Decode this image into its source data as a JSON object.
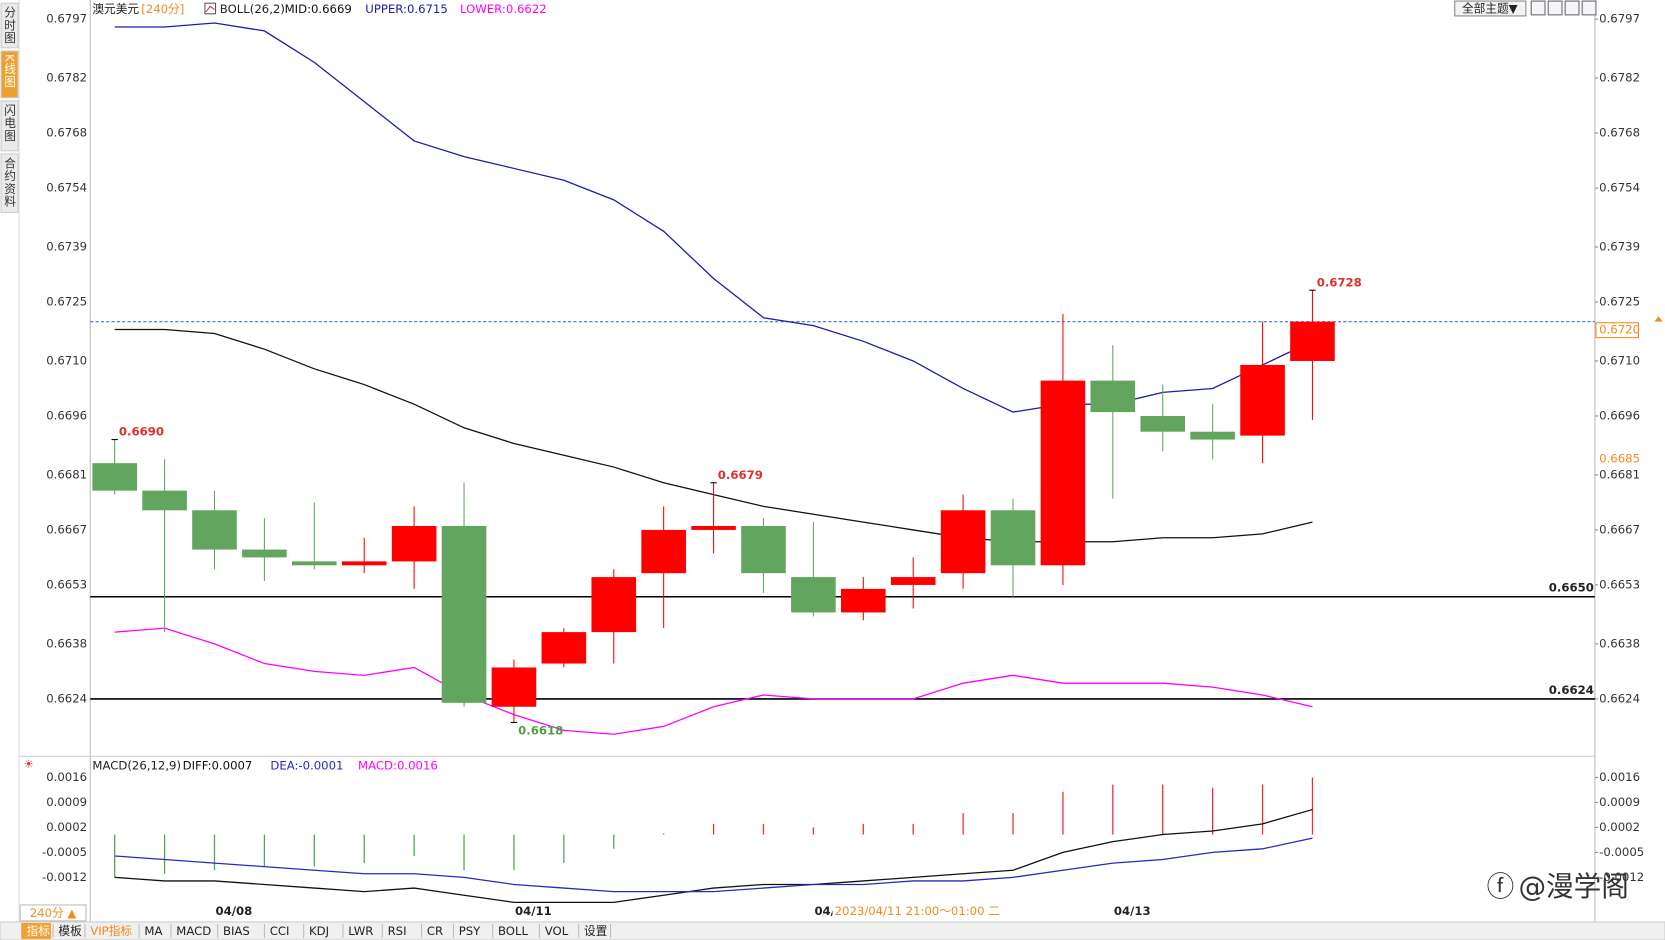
{
  "header": {
    "symbol": "澳元美元",
    "period": "[240分]",
    "theme_button": "全部主题▼"
  },
  "sidebar": {
    "tabs": [
      "分时图",
      "K线图",
      "闪电图",
      "合约资料"
    ],
    "active": 1
  },
  "toolbar": {
    "period_button": "240分 ▲",
    "items": [
      "指标",
      "模板",
      "VIP指标",
      "MA",
      "MACD",
      "BIAS",
      "CCI",
      "KDJ",
      "LWR",
      "RSI",
      "CR",
      "PSY",
      "BOLL",
      "VOL",
      "设置"
    ],
    "active": 0,
    "highlight": 2
  },
  "watermark": "@漫学阁",
  "chart_data": [
    {
      "type": "candlestick",
      "legend_title": "BOLL(26,2)",
      "categories": [
        null,
        null,
        "04/08",
        null,
        null,
        null,
        null,
        null,
        "04/11",
        null,
        null,
        null,
        null,
        null,
        "04/",
        null,
        null,
        null,
        null,
        null,
        "04/13",
        null,
        null,
        null,
        null
      ],
      "tooltip": "2023/04/11 21:00～01:00 二",
      "open": [
        0.6684,
        0.6677,
        0.6672,
        0.6662,
        0.6659,
        0.6658,
        0.6659,
        0.6668,
        0.6622,
        0.6633,
        0.6641,
        0.6656,
        0.6667,
        0.6668,
        0.6655,
        0.6646,
        0.6653,
        0.6656,
        0.6672,
        0.6658,
        0.6705,
        0.6696,
        0.6692,
        0.6691,
        0.671
      ],
      "high": [
        0.669,
        0.6685,
        0.6677,
        0.667,
        0.6674,
        0.6665,
        0.6673,
        0.6679,
        0.6634,
        0.6642,
        0.6657,
        0.6673,
        0.6679,
        0.667,
        0.6669,
        0.6655,
        0.666,
        0.6676,
        0.6675,
        0.6722,
        0.6714,
        0.6704,
        0.6699,
        0.672,
        0.6728
      ],
      "low": [
        0.6676,
        0.6641,
        0.6657,
        0.6654,
        0.6657,
        0.6656,
        0.6652,
        0.6622,
        0.6618,
        0.6632,
        0.6633,
        0.6642,
        0.6661,
        0.6651,
        0.6645,
        0.6644,
        0.6647,
        0.6652,
        0.665,
        0.6653,
        0.6675,
        0.6687,
        0.6685,
        0.6684,
        0.6695
      ],
      "close": [
        0.6677,
        0.6672,
        0.6662,
        0.666,
        0.6658,
        0.6659,
        0.6668,
        0.6623,
        0.6632,
        0.6641,
        0.6655,
        0.6667,
        0.6668,
        0.6656,
        0.6646,
        0.6652,
        0.6655,
        0.6672,
        0.6658,
        0.6705,
        0.6697,
        0.6692,
        0.669,
        0.6709,
        0.672
      ],
      "high_labels": [
        "0.6690",
        null,
        null,
        null,
        null,
        null,
        null,
        null,
        null,
        null,
        null,
        null,
        "0.6679",
        null,
        null,
        null,
        null,
        null,
        null,
        null,
        null,
        null,
        null,
        null,
        "0.6728"
      ],
      "low_labels": [
        null,
        null,
        null,
        null,
        null,
        null,
        null,
        null,
        "0.6618",
        null,
        null,
        null,
        null,
        null,
        null,
        null,
        null,
        null,
        null,
        null,
        null,
        null,
        null,
        null,
        null
      ],
      "up_color": "#ff0000",
      "down_color": "#62a55e",
      "high_label_color": "#e0302a",
      "low_label_color": "#4e9e4a",
      "series": [
        {
          "name": "MID:0.6669",
          "color": "#111111",
          "values": [
            0.6718,
            0.6718,
            0.6717,
            0.6713,
            0.6708,
            0.6704,
            0.6699,
            0.6693,
            0.6689,
            0.6686,
            0.6683,
            0.6679,
            0.6676,
            0.6673,
            0.6671,
            0.6669,
            0.6667,
            0.6665,
            0.6664,
            0.6664,
            0.6664,
            0.6665,
            0.6665,
            0.6666,
            0.6669
          ]
        },
        {
          "name": "UPPER:0.6715",
          "color": "#1c1ca8",
          "values": [
            0.6795,
            0.6795,
            0.6796,
            0.6794,
            0.6786,
            0.6776,
            0.6766,
            0.6762,
            0.6759,
            0.6756,
            0.6751,
            0.6743,
            0.6731,
            0.6721,
            0.6719,
            0.6715,
            0.671,
            0.6703,
            0.6697,
            0.6699,
            0.6699,
            0.6702,
            0.6703,
            0.6709,
            0.6715
          ]
        },
        {
          "name": "LOWER:0.6622",
          "color": "#ff00ff",
          "values": [
            0.6641,
            0.6642,
            0.6638,
            0.6633,
            0.6631,
            0.663,
            0.6632,
            0.6625,
            0.662,
            0.6616,
            0.6615,
            0.6617,
            0.6622,
            0.6625,
            0.6624,
            0.6624,
            0.6624,
            0.6628,
            0.663,
            0.6628,
            0.6628,
            0.6628,
            0.6627,
            0.6625,
            0.6622
          ]
        }
      ],
      "levels": [
        {
          "value": 0.665,
          "label": "0.6650"
        },
        {
          "value": 0.6624,
          "label": "0.6624"
        }
      ],
      "last": {
        "value": 0.672,
        "label": "0.6720"
      },
      "marker": {
        "value": 0.6685,
        "label": "0.6685"
      },
      "ylim": [
        0.661,
        0.68
      ],
      "yticks": [
        0.6797,
        0.6782,
        0.6768,
        0.6754,
        0.6739,
        0.6725,
        {
          "value": 0.671,
          "label": "0.6710"
        },
        0.6696,
        0.6681,
        0.6667,
        0.6653,
        0.6638,
        0.6624
      ],
      "grid": false
    },
    {
      "type": "macd",
      "legend_title": "MACD(26,12,9)",
      "histogram": {
        "name": "MACD:0.0016",
        "color": "#ff00ff",
        "values": [
          -0.0012,
          -0.0011,
          -0.001,
          -0.0009,
          -0.0009,
          -0.0008,
          -0.0006,
          -0.001,
          -0.001,
          -0.0008,
          -0.0004,
          0,
          0.0003,
          0.0003,
          0.0002,
          0.0003,
          0.0003,
          0.0006,
          0.0006,
          0.0012,
          0.0014,
          0.0014,
          0.0013,
          0.0014,
          0.0016
        ]
      },
      "up_color": "#e83030",
      "down_color": "#4fa64f",
      "series": [
        {
          "name": "DIFF:0.0007",
          "color": "#111111",
          "values": [
            -0.0012,
            -0.0013,
            -0.0013,
            -0.0014,
            -0.0015,
            -0.0016,
            -0.0015,
            -0.0017,
            -0.0019,
            -0.0019,
            -0.0019,
            -0.0017,
            -0.0015,
            -0.0014,
            -0.0014,
            -0.0013,
            -0.0012,
            -0.0011,
            -0.001,
            -0.0005,
            -0.0002,
            0,
            0.0001,
            0.0003,
            0.0007
          ]
        },
        {
          "name": "DEA:-0.0001",
          "color": "#2a2ab8",
          "values": [
            -0.0006,
            -0.0007,
            -0.0008,
            -0.0009,
            -0.001,
            -0.0011,
            -0.0011,
            -0.0012,
            -0.0014,
            -0.0015,
            -0.0016,
            -0.0016,
            -0.0016,
            -0.0015,
            -0.0014,
            -0.0014,
            -0.0013,
            -0.0013,
            -0.0012,
            -0.001,
            -0.0008,
            -0.0007,
            -0.0005,
            -0.0004,
            -0.0001
          ]
        }
      ],
      "ylim": [
        -0.002,
        0.0017
      ],
      "yticks": [
        0.0016,
        0.0009,
        0.0002,
        -0.0005,
        -0.0012
      ],
      "grid": false
    }
  ]
}
